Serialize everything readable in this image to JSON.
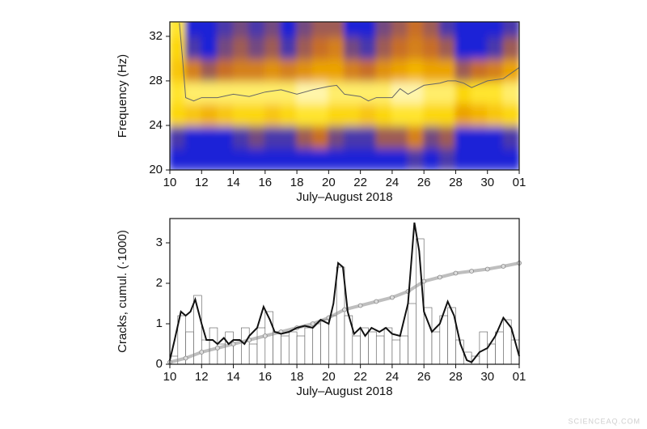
{
  "chart_data": [
    {
      "type": "heatmap",
      "ylabel": "Frequency (Hz)",
      "xlabel": "July–August 2018",
      "xlim": [
        10,
        32
      ],
      "ylim": [
        20,
        33.3
      ],
      "xticks": [
        10,
        12,
        14,
        16,
        18,
        20,
        22,
        24,
        26,
        28,
        30,
        {
          "value": 32,
          "label": "01"
        }
      ],
      "yticks": [
        20,
        24,
        28,
        32
      ],
      "xedges": [
        10,
        11,
        12,
        13,
        14,
        15,
        16,
        17,
        18,
        19,
        20,
        21,
        22,
        23,
        24,
        25,
        26,
        27,
        28,
        29,
        30,
        31,
        32
      ],
      "yedges": [
        20,
        22,
        24,
        26,
        28,
        30,
        32,
        34
      ],
      "z": [
        [
          0.3,
          0.2,
          0.2,
          0.2,
          0.2,
          0.25,
          0.2,
          0.2,
          0.2,
          0.3,
          0.35,
          0.25,
          0.3,
          0.3,
          0.35,
          0.4,
          0.3,
          0.4,
          0.3,
          0.2,
          0.2,
          0.3
        ],
        [
          0.4,
          0.35,
          0.3,
          0.35,
          0.4,
          0.45,
          0.4,
          0.4,
          0.5,
          0.55,
          0.45,
          0.4,
          0.4,
          0.5,
          0.5,
          0.6,
          0.45,
          0.5,
          0.35,
          0.3,
          0.35,
          0.4
        ],
        [
          0.85,
          0.8,
          0.75,
          0.8,
          0.85,
          0.85,
          0.8,
          0.85,
          0.9,
          0.9,
          0.85,
          0.85,
          0.8,
          0.85,
          0.9,
          0.9,
          0.85,
          0.85,
          0.7,
          0.75,
          0.8,
          0.85
        ],
        [
          0.9,
          0.95,
          0.95,
          0.95,
          0.95,
          0.95,
          0.95,
          0.95,
          1,
          1,
          0.95,
          0.95,
          0.95,
          0.95,
          1,
          1,
          0.95,
          0.95,
          0.85,
          0.9,
          0.9,
          0.95
        ],
        [
          0.8,
          0.6,
          0.5,
          0.55,
          0.6,
          0.6,
          0.65,
          0.6,
          0.65,
          0.7,
          0.7,
          0.6,
          0.55,
          0.65,
          0.7,
          0.75,
          0.7,
          0.7,
          0.5,
          0.55,
          0.6,
          0.7
        ],
        [
          0.85,
          0.4,
          0.35,
          0.45,
          0.5,
          0.45,
          0.5,
          0.4,
          0.5,
          0.55,
          0.6,
          0.45,
          0.4,
          0.5,
          0.55,
          0.6,
          0.55,
          0.5,
          0.3,
          0.35,
          0.4,
          0.5
        ],
        [
          0.9,
          0.35,
          0.3,
          0.4,
          0.45,
          0.4,
          0.45,
          0.3,
          0.45,
          0.5,
          0.5,
          0.35,
          0.35,
          0.45,
          0.5,
          0.55,
          0.5,
          0.4,
          0.25,
          0.3,
          0.3,
          0.4
        ]
      ],
      "line": {
        "color": "#666666",
        "x": [
          10.6,
          10.8,
          11,
          11.5,
          12,
          13,
          14,
          15,
          16,
          17,
          18,
          19,
          20,
          20.5,
          21,
          22,
          22.5,
          23,
          24,
          24.5,
          25,
          26,
          27,
          27.5,
          28,
          28.5,
          29,
          30,
          31,
          32
        ],
        "y": [
          33.2,
          30,
          26.5,
          26.2,
          26.5,
          26.5,
          26.8,
          26.6,
          27,
          27.2,
          26.8,
          27.2,
          27.5,
          27.6,
          26.8,
          26.6,
          26.2,
          26.5,
          26.5,
          27.3,
          26.8,
          27.6,
          27.8,
          28,
          28,
          27.8,
          27.4,
          28,
          28.2,
          29.2
        ]
      }
    },
    {
      "type": "histogram",
      "ylabel": "Cracks, cumul. (·1000)",
      "xlabel": "July–August 2018",
      "xlim": [
        10,
        32
      ],
      "ylim": [
        0,
        3.6
      ],
      "xticks": [
        10,
        12,
        14,
        16,
        18,
        20,
        22,
        24,
        26,
        28,
        30,
        {
          "value": 32,
          "label": "01"
        }
      ],
      "yticks": [
        0,
        1,
        2,
        3
      ],
      "bins": [
        10,
        10.5,
        11,
        11.5,
        12,
        12.5,
        13,
        13.5,
        14,
        14.5,
        15,
        15.5,
        16,
        16.5,
        17,
        17.5,
        18,
        18.5,
        19,
        19.5,
        20,
        20.5,
        21,
        21.5,
        22,
        22.5,
        23,
        23.5,
        24,
        24.5,
        25,
        25.5,
        26,
        26.5,
        27,
        27.5,
        28,
        28.5,
        29,
        29.5,
        30,
        30.5,
        31,
        31.5,
        32
      ],
      "counts": [
        0.2,
        1.2,
        0.8,
        1.7,
        0.6,
        0.9,
        0.5,
        0.8,
        0.6,
        0.9,
        0.5,
        0.9,
        1.3,
        0.8,
        0.7,
        0.8,
        0.7,
        0.9,
        1.0,
        1.1,
        1.2,
        2.4,
        1.2,
        0.7,
        0.9,
        0.8,
        0.7,
        0.9,
        0.6,
        0.7,
        1.5,
        3.1,
        1.4,
        0.8,
        1.2,
        1.4,
        0.6,
        0.3,
        0.2,
        0.8,
        0.5,
        0.8,
        1.1,
        0.6
      ],
      "bar_color": "#ffffff",
      "line": {
        "color": "#111111",
        "x": [
          10,
          10.3,
          10.7,
          11,
          11.3,
          11.6,
          12,
          12.3,
          12.7,
          13,
          13.4,
          13.7,
          14,
          14.4,
          14.7,
          15,
          15.5,
          15.9,
          16.3,
          16.6,
          17,
          17.5,
          18,
          18.5,
          19,
          19.5,
          20,
          20.3,
          20.6,
          20.9,
          21.2,
          21.6,
          22,
          22.3,
          22.7,
          23.2,
          23.6,
          24,
          24.5,
          25,
          25.4,
          25.7,
          26,
          26.5,
          27,
          27.5,
          27.9,
          28.3,
          28.7,
          29,
          29.5,
          30,
          30.5,
          31,
          31.5,
          32
        ],
        "y": [
          0.1,
          0.6,
          1.3,
          1.2,
          1.3,
          1.6,
          1.0,
          0.6,
          0.6,
          0.5,
          0.65,
          0.5,
          0.6,
          0.6,
          0.5,
          0.7,
          0.9,
          1.42,
          1.1,
          0.8,
          0.75,
          0.8,
          0.9,
          0.95,
          0.9,
          1.1,
          1.0,
          1.5,
          2.5,
          2.4,
          1.3,
          0.75,
          0.9,
          0.7,
          0.9,
          0.8,
          0.9,
          0.75,
          0.7,
          1.5,
          3.5,
          2.8,
          1.3,
          0.8,
          1.0,
          1.55,
          1.2,
          0.5,
          0.1,
          0.05,
          0.3,
          0.4,
          0.7,
          1.15,
          0.9,
          0.2
        ]
      },
      "cumulative": {
        "color": "#888888",
        "x": [
          10,
          11,
          12,
          13,
          14,
          15,
          16,
          17,
          18,
          19,
          20,
          21,
          22,
          23,
          24,
          25,
          26,
          27,
          28,
          29,
          30,
          31,
          32
        ],
        "y": [
          0.05,
          0.15,
          0.3,
          0.4,
          0.5,
          0.6,
          0.7,
          0.8,
          0.9,
          1.0,
          1.15,
          1.35,
          1.45,
          1.55,
          1.65,
          1.8,
          2.05,
          2.15,
          2.25,
          2.3,
          2.35,
          2.42,
          2.5
        ]
      }
    }
  ],
  "watermark": "SCIENCEAQ.COM"
}
